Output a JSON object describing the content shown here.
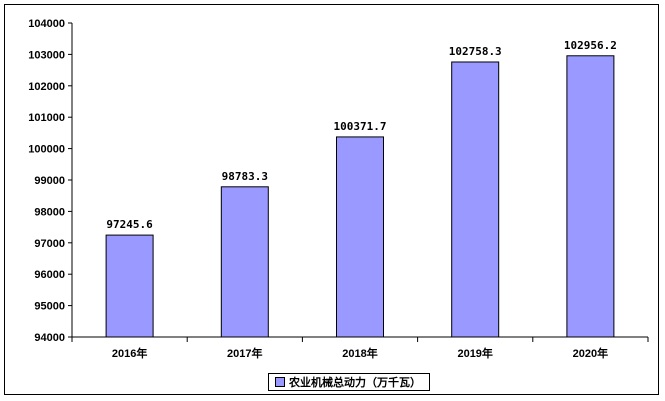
{
  "chart_data": {
    "type": "bar",
    "categories": [
      "2016年",
      "2017年",
      "2018年",
      "2019年",
      "2020年"
    ],
    "series": [
      {
        "name": "农业机械总动力（万千瓦）",
        "values": [
          97245.6,
          98783.3,
          100371.7,
          102758.3,
          102956.2
        ]
      }
    ],
    "data_labels": [
      "97245.6",
      "98783.3",
      "100371.7",
      "102758.3",
      "102956.2"
    ],
    "ylim": [
      94000,
      104000
    ],
    "yticks": [
      "94000",
      "95000",
      "96000",
      "97000",
      "98000",
      "99000",
      "100000",
      "101000",
      "102000",
      "103000",
      "104000"
    ],
    "ytick_values": [
      94000,
      95000,
      96000,
      97000,
      98000,
      99000,
      100000,
      101000,
      102000,
      103000,
      104000
    ],
    "grid": false,
    "legend_position": "bottom",
    "bar_color": "#9999ff"
  }
}
